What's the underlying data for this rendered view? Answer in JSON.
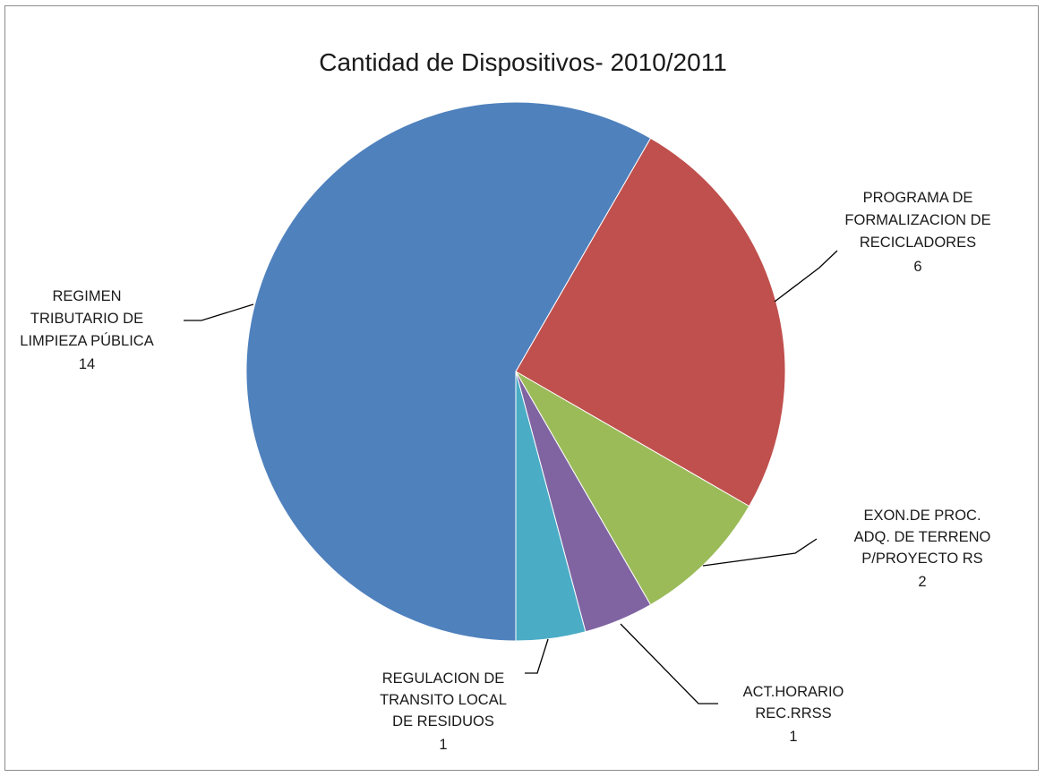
{
  "chart_data": {
    "type": "pie",
    "title": "Cantidad de Dispositivos- 2010/2011",
    "slices": [
      {
        "name": "PROGRAMA DE FORMALIZACION DE RECICLADORES",
        "label_lines": [
          "PROGRAMA DE",
          "FORMALIZACION DE",
          "RECICLADORES"
        ],
        "value": 6,
        "color": "#c0504d"
      },
      {
        "name": "EXON.DE PROC. ADQ. DE TERRENO P/PROYECTO RS",
        "label_lines": [
          "EXON.DE PROC.",
          "ADQ. DE TERRENO",
          "P/PROYECTO RS"
        ],
        "value": 2,
        "color": "#9bbb59"
      },
      {
        "name": "ACT.HORARIO REC.RRSS",
        "label_lines": [
          "ACT.HORARIO",
          "REC.RRSS"
        ],
        "value": 1,
        "color": "#8064a2"
      },
      {
        "name": "REGULACION DE TRANSITO LOCAL DE RESIDUOS",
        "label_lines": [
          "REGULACION DE",
          "TRANSITO LOCAL",
          "DE RESIDUOS"
        ],
        "value": 1,
        "color": "#4bacc6"
      },
      {
        "name": "REGIMEN TRIBUTARIO DE LIMPIEZA PÚBLICA",
        "label_lines": [
          "REGIMEN",
          "TRIBUTARIO DE",
          "LIMPIEZA PÚBLICA"
        ],
        "value": 14,
        "color": "#4f81bd"
      }
    ],
    "start_angle_deg": 30,
    "direction": "clockwise",
    "legend": "none",
    "data_labels": "category name and value"
  }
}
